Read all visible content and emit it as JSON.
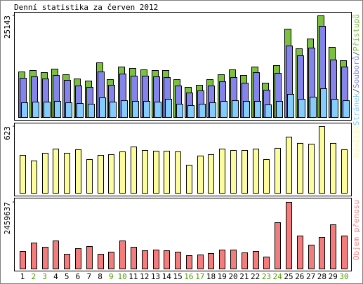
{
  "title": "Denní statistika za červen 2012",
  "legend_separator": "/",
  "chart_data": [
    {
      "type": "bar",
      "series": [
        {
          "name": "Přístupů",
          "color": "#7cc040",
          "values": [
            11271,
            11618,
            11098,
            11965,
            10577,
            9537,
            9017,
            13525,
            9364,
            12485,
            12138,
            11791,
            11618,
            11618,
            9364,
            7456,
            7976,
            9364,
            10577,
            11791,
            10404,
            12485,
            8497,
            12832,
            21848,
            16993,
            19421,
            25143,
            17340,
            14045
          ]
        },
        {
          "name": "Souborů",
          "color": "#8484ec",
          "values": [
            9710,
            10060,
            9540,
            10400,
            9190,
            7800,
            7460,
            11270,
            7980,
            10750,
            10230,
            10230,
            10060,
            9880,
            7800,
            6070,
            6590,
            7800,
            8840,
            9880,
            8500,
            11100,
            6760,
            10920,
            17690,
            15260,
            17170,
            22540,
            14220,
            12480
          ]
        },
        {
          "name": "Stránek",
          "color": "#84ccfc",
          "values": [
            3640,
            3810,
            3810,
            3990,
            3640,
            3470,
            3290,
            4860,
            3810,
            4160,
            3990,
            3990,
            3810,
            4510,
            3290,
            2950,
            3290,
            3640,
            3990,
            4160,
            3990,
            3990,
            3120,
            3990,
            5720,
            4510,
            5030,
            7110,
            4510,
            4160
          ]
        }
      ],
      "ylim": [
        0,
        25143
      ],
      "yticks": [
        25143
      ]
    },
    {
      "type": "bar",
      "series": [
        {
          "name": "Návštěv",
          "color": "#fcfc9c",
          "values": [
            354,
            302,
            374,
            413,
            374,
            407,
            315,
            354,
            361,
            387,
            433,
            400,
            393,
            393,
            387,
            262,
            348,
            361,
            413,
            400,
            400,
            413,
            315,
            420,
            525,
            466,
            459,
            623,
            466,
            407
          ]
        }
      ],
      "ylim": [
        0,
        623
      ],
      "yticks": [
        623
      ]
    },
    {
      "type": "bar",
      "categories": [
        "1",
        "2",
        "3",
        "4",
        "5",
        "6",
        "7",
        "8",
        "9",
        "10",
        "11",
        "12",
        "13",
        "14",
        "15",
        "16",
        "17",
        "18",
        "19",
        "20",
        "21",
        "22",
        "23",
        "24",
        "25",
        "26",
        "27",
        "28",
        "29",
        "30"
      ],
      "category_colors": [
        "#000000",
        "#4c9c00",
        "#4c9c00",
        "#000000",
        "#000000",
        "#000000",
        "#000000",
        "#000000",
        "#4c9c00",
        "#4c9c00",
        "#000000",
        "#000000",
        "#000000",
        "#000000",
        "#000000",
        "#4c9c00",
        "#4c9c00",
        "#000000",
        "#000000",
        "#000000",
        "#000000",
        "#000000",
        "#4c9c00",
        "#4c9c00",
        "#000000",
        "#000000",
        "#000000",
        "#000000",
        "#000000",
        "#4c9c00"
      ],
      "series": [
        {
          "name": "Objem přenosu",
          "color": "#f47c7c",
          "values": [
            647000,
            958000,
            803000,
            1036000,
            544000,
            751000,
            829000,
            544000,
            621000,
            1036000,
            803000,
            673000,
            699000,
            673000,
            621000,
            492000,
            518000,
            570000,
            699000,
            699000,
            595000,
            647000,
            440000,
            1709000,
            2459637,
            1217000,
            880000,
            1165000,
            1631000,
            1217000
          ]
        }
      ],
      "ylim": [
        0,
        2459637
      ],
      "yticks": [
        2459637
      ]
    }
  ]
}
